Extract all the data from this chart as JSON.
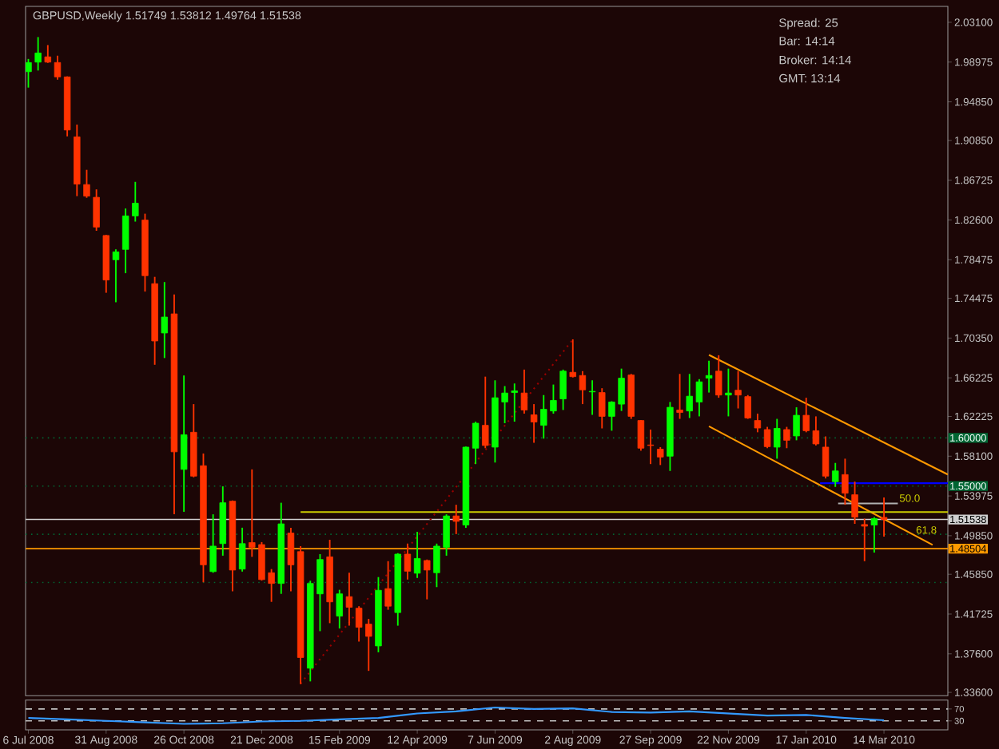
{
  "chart_data": [
    {
      "type": "candlestick",
      "title": "GBPUSD,Weekly  1.51749 1.53812 1.49764 1.51538",
      "annotations": [
        "Spread:  25",
        "Bar:    14:14",
        "Broker:    14:14",
        "GMT:    13:14",
        {
          "text": "50.0",
          "x": "2010-03-24",
          "y": 1.532
        },
        {
          "text": "61.8",
          "x": "2010-04-05",
          "y": 1.499
        }
      ],
      "x": [
        "2008-07-06",
        "2008-07-13",
        "2008-07-20",
        "2008-07-27",
        "2008-08-03",
        "2008-08-10",
        "2008-08-17",
        "2008-08-24",
        "2008-08-31",
        "2008-09-07",
        "2008-09-14",
        "2008-09-21",
        "2008-09-28",
        "2008-10-05",
        "2008-10-12",
        "2008-10-19",
        "2008-10-26",
        "2008-11-02",
        "2008-11-09",
        "2008-11-16",
        "2008-11-23",
        "2008-11-30",
        "2008-12-07",
        "2008-12-14",
        "2008-12-21",
        "2008-12-28",
        "2009-01-04",
        "2009-01-11",
        "2009-01-18",
        "2009-01-25",
        "2009-02-01",
        "2009-02-08",
        "2009-02-15",
        "2009-02-22",
        "2009-03-01",
        "2009-03-08",
        "2009-03-15",
        "2009-03-22",
        "2009-03-29",
        "2009-04-05",
        "2009-04-12",
        "2009-04-19",
        "2009-04-26",
        "2009-05-03",
        "2009-05-10",
        "2009-05-17",
        "2009-05-24",
        "2009-05-31",
        "2009-06-07",
        "2009-06-14",
        "2009-06-21",
        "2009-06-28",
        "2009-07-05",
        "2009-07-12",
        "2009-07-19",
        "2009-07-26",
        "2009-08-02",
        "2009-08-09",
        "2009-08-16",
        "2009-08-23",
        "2009-08-30",
        "2009-09-06",
        "2009-09-13",
        "2009-09-20",
        "2009-09-27",
        "2009-10-04",
        "2009-10-11",
        "2009-10-18",
        "2009-10-25",
        "2009-11-01",
        "2009-11-08",
        "2009-11-15",
        "2009-11-22",
        "2009-11-29",
        "2009-12-06",
        "2009-12-13",
        "2009-12-20",
        "2009-12-27",
        "2010-01-03",
        "2010-01-10",
        "2010-01-17",
        "2010-01-24",
        "2010-01-31",
        "2010-02-07",
        "2010-02-14",
        "2010-02-21",
        "2010-02-28",
        "2010-03-07",
        "2010-03-14"
      ],
      "ohlc": [
        [
          1.9798,
          1.993,
          1.9633,
          1.9893
        ],
        [
          1.9897,
          2.0157,
          1.981,
          1.9992
        ],
        [
          1.9952,
          2.0074,
          1.9889,
          1.9897
        ],
        [
          1.9893,
          1.9963,
          1.9716,
          1.9744
        ],
        [
          1.9744,
          1.9749,
          1.9127,
          1.9193
        ],
        [
          1.9122,
          1.9249,
          1.8507,
          1.8632
        ],
        [
          1.8627,
          1.878,
          1.849,
          1.8507
        ],
        [
          1.8495,
          1.8577,
          1.8148,
          1.8186
        ],
        [
          1.8099,
          1.8105,
          1.7505,
          1.7637
        ],
        [
          1.7847,
          1.7955,
          1.7406,
          1.7929
        ],
        [
          1.7955,
          1.8379,
          1.7708,
          1.8302
        ],
        [
          1.8302,
          1.8655,
          1.8243,
          1.8434
        ],
        [
          1.8259,
          1.8325,
          1.7517,
          1.7682
        ],
        [
          1.7599,
          1.767,
          1.6758,
          1.7005
        ],
        [
          1.7088,
          1.7616,
          1.6828,
          1.7253
        ],
        [
          1.7286,
          1.7488,
          1.5207,
          1.5855
        ],
        [
          1.5673,
          1.6647,
          1.5233,
          1.6032
        ],
        [
          1.6058,
          1.635,
          1.5591,
          1.5603
        ],
        [
          1.5711,
          1.5838,
          1.4502,
          1.4683
        ],
        [
          1.4613,
          1.5207,
          1.4601,
          1.4877
        ],
        [
          1.4903,
          1.5497,
          1.4778,
          1.5327
        ],
        [
          1.5343,
          1.535,
          1.4408,
          1.4629
        ],
        [
          1.4639,
          1.5068,
          1.4613,
          1.4903
        ],
        [
          1.4914,
          1.5673,
          1.4766,
          1.4865
        ],
        [
          1.4893,
          1.4919,
          1.452,
          1.453
        ],
        [
          1.4601,
          1.4639,
          1.4299,
          1.449
        ],
        [
          1.449,
          1.5327,
          1.4382,
          1.5108
        ],
        [
          1.5013,
          1.5068,
          1.4408,
          1.4683
        ],
        [
          1.482,
          1.4877,
          1.3446,
          1.3722
        ],
        [
          1.3611,
          1.4518,
          1.3474,
          1.449
        ],
        [
          1.4382,
          1.4794,
          1.3995,
          1.4738
        ],
        [
          1.4766,
          1.4943,
          1.4078,
          1.4299
        ],
        [
          1.4151,
          1.4424,
          1.4023,
          1.4382
        ],
        [
          1.4353,
          1.4601,
          1.4052,
          1.4243
        ],
        [
          1.4233,
          1.4254,
          1.3887,
          1.4035
        ],
        [
          1.4068,
          1.4122,
          1.3583,
          1.3941
        ],
        [
          1.3842,
          1.4556,
          1.3776,
          1.4419
        ],
        [
          1.4436,
          1.4721,
          1.4217,
          1.4254
        ],
        [
          1.4188,
          1.4804,
          1.4052,
          1.4794
        ],
        [
          1.4794,
          1.4903,
          1.453,
          1.4617
        ],
        [
          1.4596,
          1.5025,
          1.4547,
          1.4749
        ],
        [
          1.4728,
          1.4738,
          1.4325,
          1.4629
        ],
        [
          1.4601,
          1.4903,
          1.4452,
          1.4877
        ],
        [
          1.4865,
          1.5207,
          1.4778,
          1.519
        ],
        [
          1.519,
          1.5306,
          1.5002,
          1.5134
        ],
        [
          1.5096,
          1.591,
          1.5068,
          1.5904
        ],
        [
          1.5893,
          1.6168,
          1.5728,
          1.6152
        ],
        [
          1.613,
          1.6635,
          1.5893,
          1.5921
        ],
        [
          1.5904,
          1.6597,
          1.5744,
          1.6416
        ],
        [
          1.6372,
          1.6537,
          1.6152,
          1.6465
        ],
        [
          1.647,
          1.6564,
          1.6168,
          1.6487
        ],
        [
          1.6465,
          1.6708,
          1.6251,
          1.6289
        ],
        [
          1.6239,
          1.635,
          1.5949,
          1.6164
        ],
        [
          1.613,
          1.6444,
          1.5992,
          1.6296
        ],
        [
          1.6279,
          1.6553,
          1.6251,
          1.6388
        ],
        [
          1.6404,
          1.6708,
          1.6289,
          1.6692
        ],
        [
          1.668,
          1.7022,
          1.6626,
          1.6635
        ],
        [
          1.6647,
          1.6692,
          1.635,
          1.6498
        ],
        [
          1.6477,
          1.6597,
          1.6239,
          1.6482
        ],
        [
          1.647,
          1.6515,
          1.6098,
          1.6223
        ],
        [
          1.6223,
          1.638,
          1.6074,
          1.6372
        ],
        [
          1.635,
          1.6718,
          1.6279,
          1.6619
        ],
        [
          1.6652,
          1.6663,
          1.6197,
          1.6223
        ],
        [
          1.618,
          1.6185,
          1.5867,
          1.5893
        ],
        [
          1.5926,
          1.6086,
          1.5728,
          1.5921
        ],
        [
          1.5883,
          1.5904,
          1.5718,
          1.5801
        ],
        [
          1.581,
          1.6372,
          1.5657,
          1.6317
        ],
        [
          1.6289,
          1.6663,
          1.6197,
          1.6263
        ],
        [
          1.6279,
          1.6663,
          1.6206,
          1.6432
        ],
        [
          1.6372,
          1.6609,
          1.6223,
          1.6581
        ],
        [
          1.6619,
          1.68,
          1.647,
          1.6647
        ],
        [
          1.6692,
          1.6857,
          1.6416,
          1.6444
        ],
        [
          1.6444,
          1.6718,
          1.6223,
          1.6465
        ],
        [
          1.6494,
          1.6692,
          1.6305,
          1.6444
        ],
        [
          1.6428,
          1.6444,
          1.6197,
          1.6206
        ],
        [
          1.618,
          1.6251,
          1.6058,
          1.6102
        ],
        [
          1.6086,
          1.6114,
          1.5893,
          1.5909
        ],
        [
          1.5904,
          1.6197,
          1.5784,
          1.6098
        ],
        [
          1.6086,
          1.6114,
          1.5893,
          1.5975
        ],
        [
          1.602,
          1.6317,
          1.5975,
          1.6234
        ],
        [
          1.6234,
          1.6416,
          1.6058,
          1.6074
        ],
        [
          1.6074,
          1.6223,
          1.5921,
          1.5937
        ],
        [
          1.5904,
          1.6015,
          1.5579,
          1.5603
        ],
        [
          1.5546,
          1.574,
          1.5492,
          1.5657
        ],
        [
          1.5619,
          1.5784,
          1.5306,
          1.5426
        ],
        [
          1.541,
          1.5546,
          1.5108,
          1.5178
        ],
        [
          1.5101,
          1.5162,
          1.4721,
          1.5084
        ],
        [
          1.5096,
          1.5178,
          1.481,
          1.5162
        ],
        [
          1.5175,
          1.5381,
          1.4976,
          1.5154
        ]
      ],
      "colors": [
        "#00ff00",
        "#00ff00",
        "#ff3300",
        "#ff3300",
        "#ff3300",
        "#ff3300",
        "#ff3300",
        "#ff3300",
        "#ff3300",
        "#00ff00",
        "#00ff00",
        "#00ff00",
        "#ff3300",
        "#ff3300",
        "#00ff00",
        "#ff3300",
        "#00ff00",
        "#ff3300",
        "#ff3300",
        "#00ff00",
        "#00ff00",
        "#ff3300",
        "#00ff00",
        "#ff3300",
        "#ff3300",
        "#ff3300",
        "#00ff00",
        "#ff3300",
        "#ff3300",
        "#00ff00",
        "#00ff00",
        "#ff3300",
        "#00ff00",
        "#ff3300",
        "#ff3300",
        "#ff3300",
        "#00ff00",
        "#ff3300",
        "#00ff00",
        "#ff3300",
        "#00ff00",
        "#ff3300",
        "#00ff00",
        "#00ff00",
        "#ff3300",
        "#00ff00",
        "#00ff00",
        "#ff3300",
        "#00ff00",
        "#00ff00",
        "#00ff00",
        "#ff3300",
        "#ff3300",
        "#00ff00",
        "#00ff00",
        "#00ff00",
        "#ff3300",
        "#ff3300",
        "#00ff00",
        "#ff3300",
        "#00ff00",
        "#00ff00",
        "#ff3300",
        "#ff3300",
        "#ff3300",
        "#ff3300",
        "#00ff00",
        "#ff3300",
        "#00ff00",
        "#00ff00",
        "#00ff00",
        "#ff3300",
        "#00ff00",
        "#ff3300",
        "#ff3300",
        "#ff3300",
        "#ff3300",
        "#00ff00",
        "#ff3300",
        "#00ff00",
        "#ff3300",
        "#ff3300",
        "#ff3300",
        "#00ff00",
        "#ff3300",
        "#ff3300",
        "#ff3300",
        "#00ff00",
        "#ff3300"
      ],
      "series": [
        {
          "type": "line",
          "x": [
            "2009-01-18",
            "2009-08-02"
          ],
          "values": [
            1.345,
            1.702
          ],
          "color": "#990000",
          "line_style": "dotted"
        },
        {
          "type": "line",
          "x": [
            "2009-11-08",
            "2010-04-29"
          ],
          "values": [
            1.686,
            1.562
          ],
          "color": "#ff9900",
          "line_style": "solid"
        },
        {
          "type": "line",
          "x": [
            "2009-11-08",
            "2010-04-18"
          ],
          "values": [
            1.612,
            1.489
          ],
          "color": "#ff9900",
          "line_style": "solid"
        },
        {
          "type": "line",
          "x": [
            "2009-01-18",
            "2010-04-29"
          ],
          "values": [
            1.523,
            1.523
          ],
          "color": "#cccc00",
          "line_style": "solid"
        },
        {
          "type": "line",
          "x": [
            "2010-01-27",
            "2010-04-29"
          ],
          "values": [
            1.553,
            1.553
          ],
          "color": "#0000ff",
          "line_style": "solid"
        },
        {
          "type": "line",
          "x": [
            "2010-02-09",
            "2010-03-24"
          ],
          "values": [
            1.532,
            1.532
          ],
          "color": "#b0b0b0",
          "line_style": "solid"
        }
      ],
      "ref_lines": [
        {
          "axis": "y",
          "value": 1.6,
          "label": "1.60000",
          "color": "#006633",
          "line_style": "dotted"
        },
        {
          "axis": "y",
          "value": 1.55,
          "label": "1.55000",
          "color": "#006633",
          "line_style": "dotted"
        },
        {
          "axis": "y",
          "value": 1.5,
          "color": "#006633",
          "line_style": "dotted"
        },
        {
          "axis": "y",
          "value": 1.45,
          "color": "#006633",
          "line_style": "dotted"
        },
        {
          "axis": "y",
          "value": 1.51538,
          "label": "1.51538",
          "color": "#d0d0d0",
          "line_style": "solid"
        },
        {
          "axis": "y",
          "value": 1.48504,
          "label": "1.48504",
          "color": "#ff9900",
          "line_style": "solid"
        }
      ],
      "xlim": [
        "2008-07-04",
        "2010-04-29"
      ],
      "ylim": [
        1.3325,
        2.0475
      ],
      "yticks": [
        {
          "value": 1.336,
          "label": "1.33600"
        },
        {
          "value": 1.376,
          "label": "1.37600"
        },
        1.41725,
        {
          "value": 1.4585,
          "label": "1.45850"
        },
        {
          "value": 1.4985,
          "label": "1.49850"
        },
        1.53975,
        {
          "value": 1.581,
          "label": "1.58100"
        },
        1.62225,
        1.66225,
        {
          "value": 1.7035,
          "label": "1.70350"
        },
        1.74475,
        1.78475,
        {
          "value": 1.826,
          "label": "1.82600"
        },
        1.86725,
        {
          "value": 1.9085,
          "label": "1.90850"
        },
        {
          "value": 1.9485,
          "label": "1.94850"
        },
        1.98975,
        {
          "value": 2.031,
          "label": "2.03100"
        }
      ],
      "tick_labels": "y"
    },
    {
      "type": "line",
      "x": [
        "2008-07-06",
        "2008-08-03",
        "2008-08-31",
        "2008-09-28",
        "2008-10-26",
        "2008-11-23",
        "2008-12-21",
        "2009-01-18",
        "2009-02-15",
        "2009-03-15",
        "2009-04-12",
        "2009-05-10",
        "2009-06-07",
        "2009-07-05",
        "2009-08-02",
        "2009-08-30",
        "2009-09-27",
        "2009-10-25",
        "2009-11-22",
        "2009-12-20",
        "2010-01-17",
        "2010-02-14",
        "2010-03-14"
      ],
      "values": [
        40,
        35,
        30,
        25,
        20,
        22,
        28,
        30,
        35,
        40,
        55,
        62,
        75,
        70,
        72,
        60,
        58,
        62,
        55,
        48,
        50,
        40,
        32
      ],
      "color": "#3399ff",
      "ref_lines": [
        {
          "axis": "y",
          "value": 70,
          "color": "#c0c0c0",
          "line_style": "dashed"
        },
        {
          "axis": "y",
          "value": 30,
          "color": "#c0c0c0",
          "line_style": "dashed"
        }
      ],
      "xlim": [
        "2008-07-04",
        "2010-04-29"
      ],
      "ylim": [
        0,
        100
      ],
      "yticks": [
        30,
        70
      ],
      "xticks": [
        {
          "value": "2008-07-06",
          "label": "6 Jul 2008"
        },
        {
          "value": "2008-08-31",
          "label": "31 Aug 2008"
        },
        {
          "value": "2008-10-26",
          "label": "26 Oct 2008"
        },
        {
          "value": "2008-12-21",
          "label": "21 Dec 2008"
        },
        {
          "value": "2009-02-15",
          "label": "15 Feb 2009"
        },
        {
          "value": "2009-04-12",
          "label": "12 Apr 2009"
        },
        {
          "value": "2009-06-07",
          "label": "7 Jun 2009"
        },
        {
          "value": "2009-08-02",
          "label": "2 Aug 2009"
        },
        {
          "value": "2009-09-27",
          "label": "27 Sep 2009"
        },
        {
          "value": "2009-11-22",
          "label": "22 Nov 2009"
        },
        {
          "value": "2010-01-17",
          "label": "17 Jan 2010"
        },
        {
          "value": "2010-03-14",
          "label": "14 Mar 2010"
        }
      ]
    }
  ]
}
